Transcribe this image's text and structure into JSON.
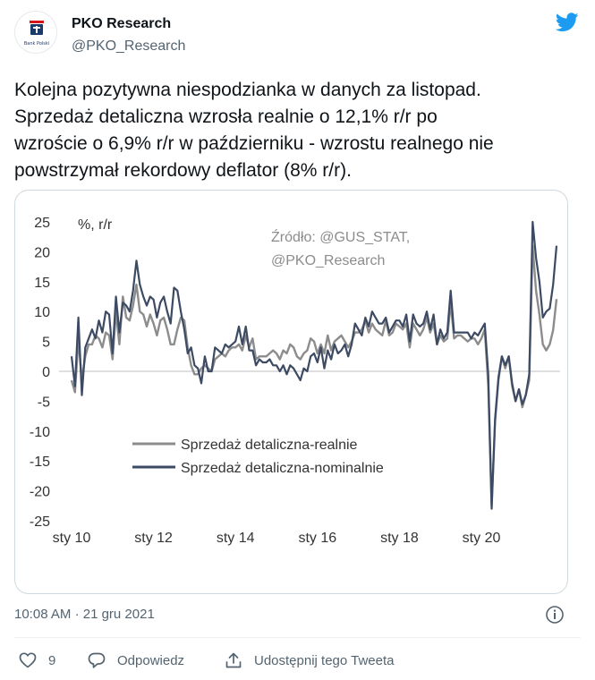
{
  "author": {
    "name": "PKO Research",
    "handle": "@PKO_Research",
    "avatar_text": "Bank Polski"
  },
  "icons": {
    "brand": "twitter-bird-icon",
    "info": "info-icon",
    "like": "heart-icon",
    "reply": "reply-bubble-icon",
    "share": "share-icon"
  },
  "colors": {
    "twitter_blue": "#1d9bf0",
    "real_series": "#8c8c8c",
    "nominal_series": "#3c4a63",
    "pko_navy": "#1a3a6c",
    "pko_red": "#d7141a"
  },
  "tweet": {
    "text_lines": [
      "Kolejna pozytywna niespodzianka w danych za listopad.",
      "Sprzedaż detaliczna wzrosła realnie o 12,1% r/r po",
      "wzroście o 6,9% r/r w październiku - wzrostu realnego nie",
      "powstrzymał rekordowy deflator (8% r/r)."
    ],
    "time": "10:08 AM",
    "separator": "·",
    "date": "21 gru 2021"
  },
  "actions": {
    "like_count": "9",
    "reply_label": "Odpowiedz",
    "share_label": "Udostępnij tego Tweeta"
  },
  "chart_data": {
    "type": "line",
    "ylabel": "%, r/r",
    "annotation": [
      "Źródło: @GUS_STAT,",
      "@PKO_Research"
    ],
    "ylim": [
      -25,
      25
    ],
    "yticks": [
      25,
      20,
      15,
      10,
      5,
      0,
      -5,
      -10,
      -15,
      -20,
      -25
    ],
    "xlim": [
      "2010-01",
      "2021-11"
    ],
    "xticks": [
      "sty 10",
      "sty 12",
      "sty 14",
      "sty 16",
      "sty 18",
      "sty 20"
    ],
    "xtick_dates": [
      "2010-01",
      "2012-01",
      "2014-01",
      "2016-01",
      "2018-01",
      "2020-01"
    ],
    "grid": false,
    "legend": "bottom-left",
    "x": [
      "2010-01",
      "2010-02",
      "2010-03",
      "2010-04",
      "2010-05",
      "2010-06",
      "2010-07",
      "2010-08",
      "2010-09",
      "2010-10",
      "2010-11",
      "2010-12",
      "2011-01",
      "2011-02",
      "2011-03",
      "2011-04",
      "2011-05",
      "2011-06",
      "2011-07",
      "2011-08",
      "2011-09",
      "2011-10",
      "2011-11",
      "2011-12",
      "2012-01",
      "2012-02",
      "2012-03",
      "2012-04",
      "2012-05",
      "2012-06",
      "2012-07",
      "2012-08",
      "2012-09",
      "2012-10",
      "2012-11",
      "2012-12",
      "2013-01",
      "2013-02",
      "2013-03",
      "2013-04",
      "2013-05",
      "2013-06",
      "2013-07",
      "2013-08",
      "2013-09",
      "2013-10",
      "2013-11",
      "2013-12",
      "2014-01",
      "2014-02",
      "2014-03",
      "2014-04",
      "2014-05",
      "2014-06",
      "2014-07",
      "2014-08",
      "2014-09",
      "2014-10",
      "2014-11",
      "2014-12",
      "2015-01",
      "2015-02",
      "2015-03",
      "2015-04",
      "2015-05",
      "2015-06",
      "2015-07",
      "2015-08",
      "2015-09",
      "2015-10",
      "2015-11",
      "2015-12",
      "2016-01",
      "2016-02",
      "2016-03",
      "2016-04",
      "2016-05",
      "2016-06",
      "2016-07",
      "2016-08",
      "2016-09",
      "2016-10",
      "2016-11",
      "2016-12",
      "2017-01",
      "2017-02",
      "2017-03",
      "2017-04",
      "2017-05",
      "2017-06",
      "2017-07",
      "2017-08",
      "2017-09",
      "2017-10",
      "2017-11",
      "2017-12",
      "2018-01",
      "2018-02",
      "2018-03",
      "2018-04",
      "2018-05",
      "2018-06",
      "2018-07",
      "2018-08",
      "2018-09",
      "2018-10",
      "2018-11",
      "2018-12",
      "2019-01",
      "2019-02",
      "2019-03",
      "2019-04",
      "2019-05",
      "2019-06",
      "2019-07",
      "2019-08",
      "2019-09",
      "2019-10",
      "2019-11",
      "2019-12",
      "2020-01",
      "2020-02",
      "2020-03",
      "2020-04",
      "2020-05",
      "2020-06",
      "2020-07",
      "2020-08",
      "2020-09",
      "2020-10",
      "2020-11",
      "2020-12",
      "2021-01",
      "2021-02",
      "2021-03",
      "2021-04",
      "2021-05",
      "2021-06",
      "2021-07",
      "2021-08",
      "2021-09",
      "2021-10",
      "2021-11"
    ],
    "series": [
      {
        "name": "Sprzedaż detaliczna-realnie",
        "values": [
          -1.5,
          -3.5,
          5.5,
          -1.5,
          2.5,
          4.5,
          4.5,
          6.0,
          5.5,
          4.0,
          6.5,
          6.0,
          2.0,
          10.0,
          4.5,
          12.5,
          9.0,
          8.5,
          11.0,
          14.5,
          10.0,
          9.5,
          7.5,
          9.5,
          8.0,
          6.0,
          8.5,
          9.0,
          7.0,
          4.5,
          4.5,
          7.0,
          9.0,
          8.5,
          4.0,
          1.0,
          -0.5,
          -0.5,
          0.5,
          1.0,
          0.5,
          0.0,
          2.0,
          2.5,
          3.0,
          2.5,
          3.5,
          4.0,
          4.0,
          4.5,
          3.5,
          6.0,
          4.0,
          5.5,
          2.0,
          2.5,
          2.5,
          2.5,
          3.0,
          3.5,
          3.0,
          2.0,
          3.5,
          3.0,
          4.5,
          4.0,
          2.5,
          2.0,
          3.0,
          3.5,
          5.5,
          5.0,
          3.0,
          4.5,
          3.0,
          6.0,
          3.5,
          5.0,
          5.5,
          6.0,
          5.0,
          4.0,
          5.0,
          6.5,
          6.5,
          7.0,
          8.5,
          6.5,
          8.0,
          7.0,
          6.5,
          6.0,
          8.5,
          6.0,
          6.5,
          8.0,
          7.5,
          7.0,
          8.0,
          4.0,
          8.0,
          7.0,
          6.0,
          7.0,
          9.0,
          6.5,
          8.0,
          4.5,
          6.0,
          5.0,
          5.5,
          11.5,
          5.5,
          6.0,
          6.0,
          5.5,
          5.0,
          5.5,
          5.5,
          4.5,
          5.5,
          7.0,
          -2.5,
          -22.5,
          -8.5,
          -1.5,
          2.5,
          0.5,
          2.5,
          -2.5,
          -5.0,
          -3.0,
          -6.0,
          -4.0,
          -1.5,
          21.0,
          13.5,
          9.5,
          4.5,
          3.5,
          4.5,
          6.9,
          12.1
        ]
      },
      {
        "name": "Sprzedaż detaliczna-nominalnie",
        "values": [
          2.5,
          -2.5,
          9.0,
          -4.0,
          4.0,
          5.5,
          7.0,
          5.5,
          8.5,
          6.5,
          10.0,
          9.5,
          3.0,
          12.5,
          6.5,
          11.5,
          11.0,
          10.0,
          13.5,
          18.5,
          14.5,
          12.5,
          11.0,
          12.5,
          12.0,
          9.0,
          11.5,
          12.5,
          10.0,
          8.0,
          14.0,
          13.5,
          10.0,
          7.0,
          3.0,
          4.0,
          1.0,
          0.5,
          -2.0,
          2.5,
          0.0,
          0.0,
          4.0,
          3.5,
          3.0,
          4.5,
          4.0,
          4.5,
          5.0,
          7.5,
          4.5,
          7.5,
          3.5,
          3.5,
          1.0,
          2.0,
          1.5,
          1.5,
          2.0,
          1.0,
          1.0,
          0.0,
          1.0,
          -0.5,
          1.0,
          0.5,
          -0.5,
          -1.5,
          0.5,
          0.0,
          2.5,
          3.0,
          1.5,
          4.0,
          0.5,
          3.5,
          2.0,
          4.5,
          3.0,
          3.5,
          4.5,
          2.5,
          4.5,
          8.0,
          7.0,
          6.0,
          9.0,
          7.5,
          10.0,
          9.0,
          8.0,
          8.0,
          9.0,
          6.5,
          7.5,
          8.5,
          8.5,
          7.5,
          9.5,
          5.0,
          9.5,
          8.0,
          7.5,
          8.0,
          10.0,
          7.0,
          9.5,
          4.5,
          7.0,
          5.5,
          6.5,
          13.5,
          6.5,
          6.5,
          6.5,
          6.5,
          6.5,
          5.5,
          6.5,
          6.0,
          7.0,
          8.0,
          -0.5,
          -23.0,
          -8.0,
          -1.0,
          2.5,
          1.0,
          2.5,
          -2.0,
          -5.0,
          -3.0,
          -5.5,
          -4.0,
          -0.5,
          25.0,
          19.0,
          15.0,
          9.0,
          10.0,
          10.5,
          14.5,
          21.0
        ]
      }
    ]
  }
}
